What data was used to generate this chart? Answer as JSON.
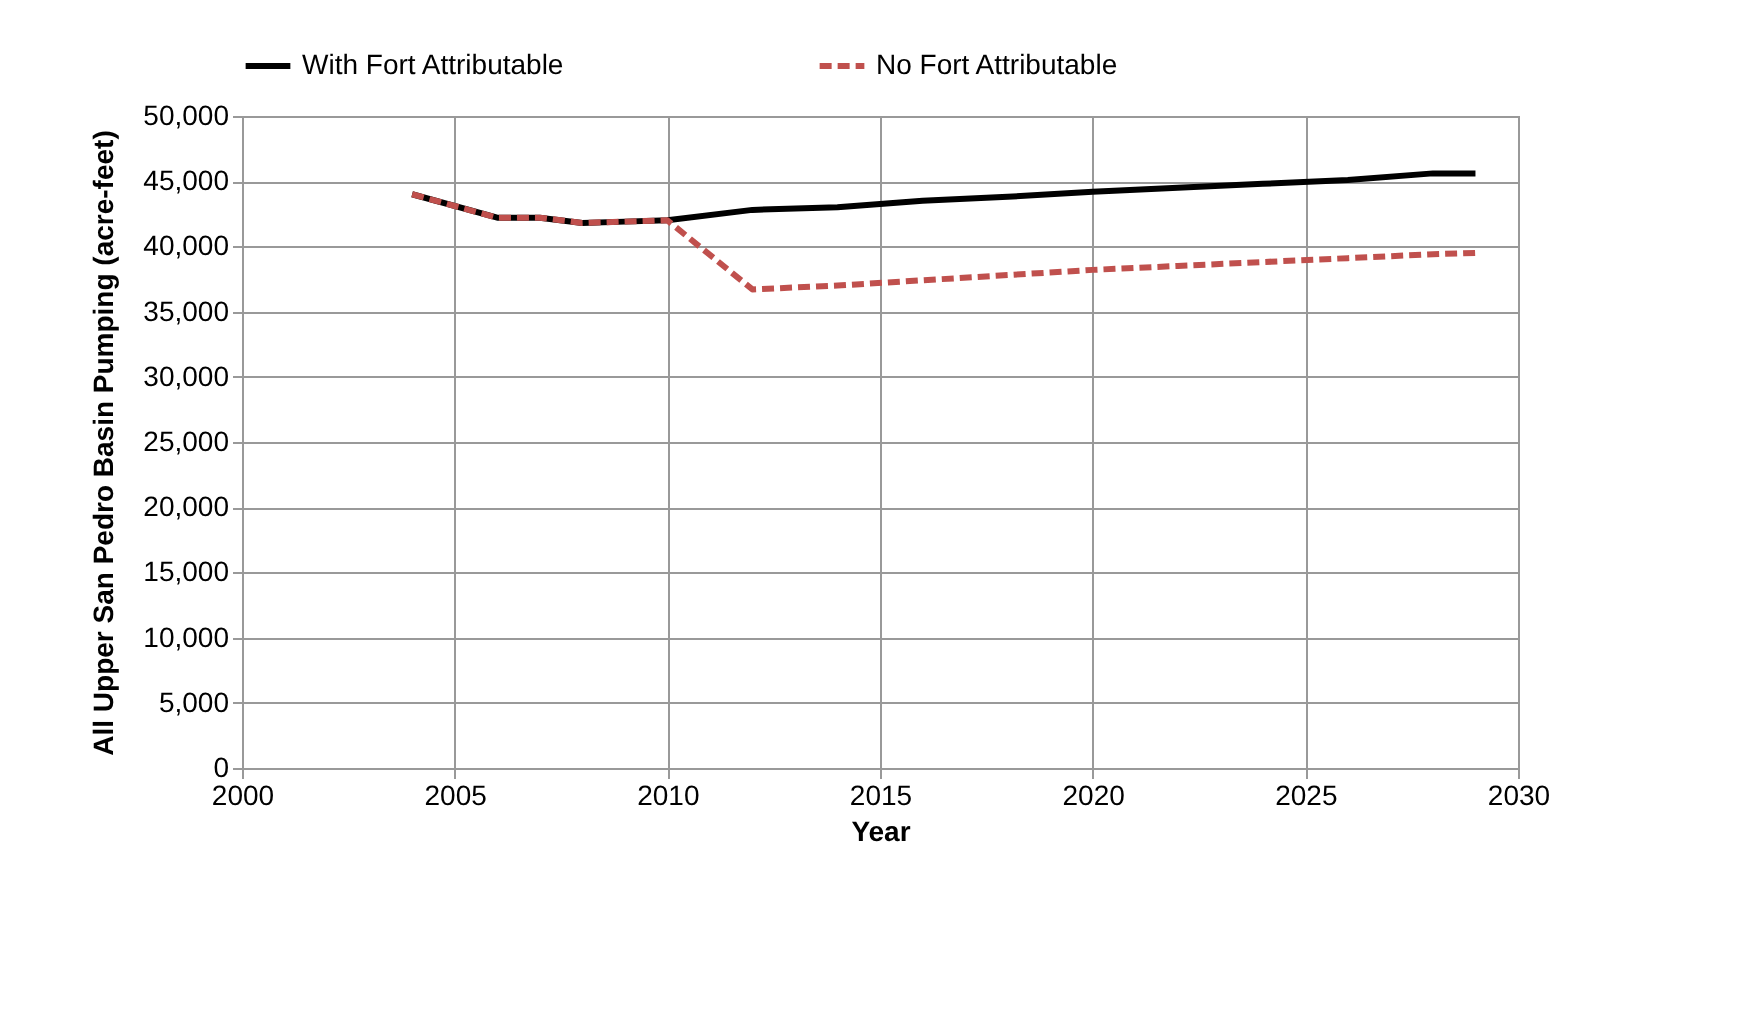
{
  "chart_data": {
    "type": "line",
    "xlabel": "Year",
    "ylabel": "All Upper San Pedro Basin Pumping (acre-feet)",
    "xlim": [
      2000,
      2030
    ],
    "xticks": [
      2000,
      2005,
      2010,
      2015,
      2020,
      2025,
      2030
    ],
    "ylim": [
      0,
      50000
    ],
    "yticks": [
      0,
      {
        "value": 5000,
        "label": "5,000"
      },
      {
        "value": 10000,
        "label": "10,000"
      },
      {
        "value": 15000,
        "label": "15,000"
      },
      {
        "value": 20000,
        "label": "20,000"
      },
      {
        "value": 25000,
        "label": "25,000"
      },
      {
        "value": 30000,
        "label": "30,000"
      },
      {
        "value": 35000,
        "label": "35,000"
      },
      {
        "value": 40000,
        "label": "40,000"
      },
      {
        "value": 45000,
        "label": "45,000"
      },
      {
        "value": 50000,
        "label": "50,000"
      }
    ],
    "grid": true,
    "legend": "top",
    "marker": "none",
    "series": [
      {
        "name": "With Fort Attributable",
        "color": "#000000",
        "line_style": "solid",
        "x": [
          2004,
          2006,
          2007,
          2008,
          2009,
          2010,
          2012,
          2014,
          2016,
          2018,
          2020,
          2022,
          2024,
          2026,
          2028,
          2029
        ],
        "values": [
          44000,
          42200,
          42200,
          41800,
          41900,
          42000,
          42800,
          43000,
          43500,
          43800,
          44200,
          44500,
          44800,
          45100,
          45600,
          45600
        ]
      },
      {
        "name": "No Fort Attributable",
        "color": "#c0504d",
        "line_style": "dashed",
        "x": [
          2004,
          2006,
          2007,
          2008,
          2009,
          2010,
          2012,
          2014,
          2016,
          2018,
          2020,
          2022,
          2024,
          2026,
          2028,
          2029
        ],
        "values": [
          44000,
          42200,
          42200,
          41800,
          41900,
          42000,
          36700,
          37000,
          37400,
          37800,
          38200,
          38500,
          38800,
          39100,
          39400,
          39500
        ]
      }
    ]
  }
}
